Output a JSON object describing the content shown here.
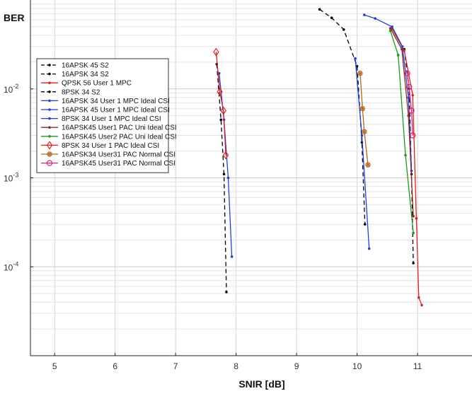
{
  "chart_data": {
    "type": "line",
    "title": "",
    "xlabel": "SNIR [dB]",
    "ylabel": "BER",
    "x_scale": "linear",
    "y_scale": "log",
    "xlim": [
      4.6,
      11.9
    ],
    "ylim": [
      1e-05,
      0.1
    ],
    "xticks": [
      5,
      6,
      7,
      8,
      9,
      10,
      11
    ],
    "yticks": [
      {
        "value": 0.01,
        "base": "10",
        "exp": "-2"
      },
      {
        "value": 0.001,
        "base": "10",
        "exp": "-3"
      },
      {
        "value": 0.0001,
        "base": "10",
        "exp": "-4"
      }
    ],
    "grid": true,
    "legend_position": "top-left",
    "series": [
      {
        "name": "16APSK 45 S2",
        "color": "#000000",
        "dash": "dashed",
        "marker": "dot",
        "points": [
          [
            9.38,
            0.0785
          ],
          [
            9.58,
            0.063
          ],
          [
            9.78,
            0.0465
          ],
          [
            10.0,
            0.018
          ],
          [
            10.08,
            0.0025
          ],
          [
            10.13,
            0.0003
          ]
        ]
      },
      {
        "name": "16APSK 34 S2",
        "color": "#000000",
        "dash": "dashed",
        "marker": "dot",
        "points": [
          [
            10.78,
            0.028
          ],
          [
            10.86,
            0.01
          ],
          [
            10.9,
            0.0011
          ],
          [
            10.93,
            0.00011
          ]
        ]
      },
      {
        "name": "QPSK 56 User 1 MPC",
        "color": "#e02020",
        "dash": "solid",
        "marker": "dot",
        "points": [
          [
            10.58,
            0.047
          ],
          [
            10.78,
            0.027
          ],
          [
            10.92,
            0.0085
          ],
          [
            10.98,
            0.00035
          ],
          [
            11.02,
            4.5e-05
          ],
          [
            11.07,
            3.7e-05
          ]
        ]
      },
      {
        "name": "8PSK 34 S2",
        "color": "#000000",
        "dash": "dashed",
        "marker": "dot",
        "points": [
          [
            7.68,
            0.019
          ],
          [
            7.75,
            0.0045
          ],
          [
            7.8,
            0.0011
          ],
          [
            7.84,
            5.2e-05
          ]
        ]
      },
      {
        "name": "16APSK 34 User 1 MPC Ideal CSI",
        "color": "#1f3fe0",
        "dash": "solid",
        "marker": "dot",
        "points": [
          [
            7.72,
            0.015
          ],
          [
            7.8,
            0.0045
          ],
          [
            7.87,
            0.001
          ],
          [
            7.93,
            0.00013
          ]
        ]
      },
      {
        "name": "16APSK 45 User 1 MPC Ideal CSI",
        "color": "#1f3fe0",
        "dash": "solid",
        "marker": "dot",
        "points": [
          [
            10.12,
            0.068
          ],
          [
            10.3,
            0.062
          ],
          [
            10.58,
            0.05
          ],
          [
            10.75,
            0.03
          ],
          [
            10.85,
            0.008
          ],
          [
            10.9,
            0.0012
          ]
        ]
      },
      {
        "name": "8PSK 34 User 1 MPC Ideal CSI",
        "color": "#1f3fe0",
        "dash": "solid",
        "marker": "dot",
        "points": [
          [
            9.97,
            0.022
          ],
          [
            10.08,
            0.003
          ],
          [
            10.2,
            0.00016
          ]
        ]
      },
      {
        "name": "16APSK45 User1 PAC Uni Ideal CSI",
        "color": "#8b2e16",
        "dash": "solid",
        "marker": "dot",
        "points": [
          [
            10.55,
            0.048
          ],
          [
            10.74,
            0.028
          ],
          [
            10.85,
            0.005
          ],
          [
            10.93,
            0.00037
          ]
        ]
      },
      {
        "name": "16APSK45 User2 PAC Uni Ideal CSI",
        "color": "#1a9a1a",
        "dash": "solid",
        "marker": "dot",
        "points": [
          [
            10.55,
            0.045
          ],
          [
            10.68,
            0.024
          ],
          [
            10.8,
            0.0018
          ],
          [
            10.93,
            0.00024
          ]
        ]
      },
      {
        "name": "8PSK 34 User 1 PAC Ideal CSI",
        "color": "#e02020",
        "dash": "solid",
        "marker": "diamond",
        "points": [
          [
            7.67,
            0.026
          ],
          [
            7.73,
            0.0093
          ],
          [
            7.79,
            0.0057
          ],
          [
            7.83,
            0.0018
          ]
        ]
      },
      {
        "name": "16APSK34 User31 PAC Normal CSI",
        "color": "#b5651d",
        "dash": "solid",
        "marker": "star-circle",
        "points": [
          [
            10.05,
            0.015
          ],
          [
            10.09,
            0.006
          ],
          [
            10.12,
            0.0033
          ],
          [
            10.18,
            0.0014
          ]
        ]
      },
      {
        "name": "16APSK45 User31 PAC Normal CSI",
        "color": "#e0207a",
        "dash": "solid",
        "marker": "circle",
        "points": [
          [
            10.83,
            0.015
          ],
          [
            10.86,
            0.0105
          ],
          [
            10.9,
            0.0057
          ],
          [
            10.92,
            0.003
          ]
        ]
      }
    ]
  }
}
